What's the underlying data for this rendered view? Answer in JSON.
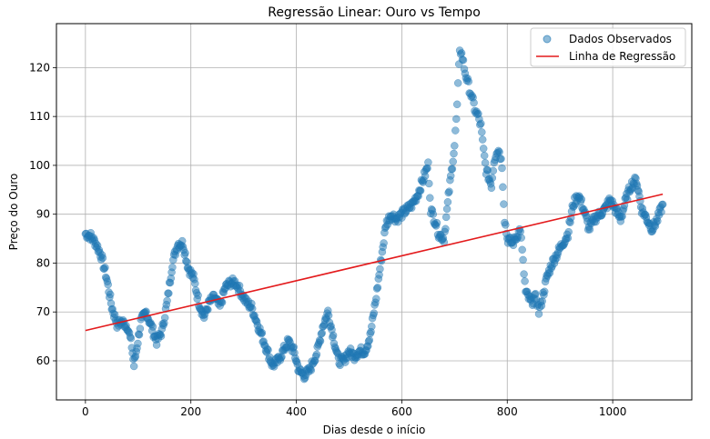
{
  "chart_data": {
    "type": "scatter",
    "title": "Regressão Linear: Ouro vs Tempo",
    "xlabel": "Dias desde o início",
    "ylabel": "Preço do Ouro",
    "xlim": [
      -55,
      1150
    ],
    "ylim": [
      52,
      129
    ],
    "xticks": [
      0,
      200,
      400,
      600,
      800,
      1000
    ],
    "yticks": [
      60,
      70,
      80,
      90,
      100,
      110,
      120
    ],
    "grid": true,
    "legend_position": "top-right",
    "series": [
      {
        "name": "Dados Observados",
        "kind": "scatter",
        "color": "#1f77b4",
        "alpha": 0.5,
        "anchors": [
          [
            0,
            86
          ],
          [
            10,
            85.5
          ],
          [
            20,
            84
          ],
          [
            30,
            81.5
          ],
          [
            40,
            77
          ],
          [
            50,
            71
          ],
          [
            60,
            67.5
          ],
          [
            70,
            68
          ],
          [
            80,
            67
          ],
          [
            88,
            63
          ],
          [
            92,
            59
          ],
          [
            95,
            61
          ],
          [
            105,
            68
          ],
          [
            115,
            70
          ],
          [
            125,
            67
          ],
          [
            135,
            64
          ],
          [
            145,
            66
          ],
          [
            155,
            72
          ],
          [
            165,
            80
          ],
          [
            175,
            84
          ],
          [
            185,
            84
          ],
          [
            195,
            79
          ],
          [
            205,
            77
          ],
          [
            215,
            72
          ],
          [
            225,
            69
          ],
          [
            235,
            72
          ],
          [
            245,
            73
          ],
          [
            255,
            71
          ],
          [
            265,
            75
          ],
          [
            275,
            76
          ],
          [
            285,
            76
          ],
          [
            295,
            74
          ],
          [
            305,
            72
          ],
          [
            315,
            71
          ],
          [
            325,
            68
          ],
          [
            335,
            65
          ],
          [
            345,
            62
          ],
          [
            355,
            59
          ],
          [
            365,
            60
          ],
          [
            375,
            62
          ],
          [
            385,
            64
          ],
          [
            395,
            62
          ],
          [
            405,
            58
          ],
          [
            415,
            57
          ],
          [
            425,
            58
          ],
          [
            440,
            62
          ],
          [
            450,
            67
          ],
          [
            460,
            70
          ],
          [
            470,
            65
          ],
          [
            480,
            60
          ],
          [
            490,
            60
          ],
          [
            500,
            62
          ],
          [
            510,
            61
          ],
          [
            520,
            62
          ],
          [
            530,
            62
          ],
          [
            540,
            65
          ],
          [
            550,
            72
          ],
          [
            560,
            80
          ],
          [
            570,
            88
          ],
          [
            580,
            90
          ],
          [
            590,
            89
          ],
          [
            600,
            90
          ],
          [
            610,
            91
          ],
          [
            620,
            92
          ],
          [
            630,
            94
          ],
          [
            640,
            97
          ],
          [
            650,
            100
          ],
          [
            655,
            91
          ],
          [
            665,
            88
          ],
          [
            670,
            86
          ],
          [
            680,
            85
          ],
          [
            690,
            95
          ],
          [
            700,
            104
          ],
          [
            705,
            112
          ],
          [
            710,
            124
          ],
          [
            715,
            122
          ],
          [
            720,
            119
          ],
          [
            725,
            117
          ],
          [
            730,
            115
          ],
          [
            735,
            113
          ],
          [
            740,
            111
          ],
          [
            745,
            110
          ],
          [
            750,
            108
          ],
          [
            755,
            103
          ],
          [
            760,
            99
          ],
          [
            770,
            96
          ],
          [
            775,
            101
          ],
          [
            780,
            103
          ],
          [
            785,
            103
          ],
          [
            790,
            100
          ],
          [
            795,
            89
          ],
          [
            800,
            85
          ],
          [
            810,
            84
          ],
          [
            820,
            86
          ],
          [
            825,
            87
          ],
          [
            830,
            80
          ],
          [
            835,
            74
          ],
          [
            845,
            72
          ],
          [
            855,
            73
          ],
          [
            860,
            70
          ],
          [
            865,
            72
          ],
          [
            875,
            77
          ],
          [
            885,
            80
          ],
          [
            895,
            82
          ],
          [
            905,
            84
          ],
          [
            915,
            86
          ],
          [
            925,
            92
          ],
          [
            935,
            94
          ],
          [
            945,
            91
          ],
          [
            955,
            87
          ],
          [
            965,
            89
          ],
          [
            975,
            90
          ],
          [
            985,
            91
          ],
          [
            995,
            93
          ],
          [
            1005,
            91
          ],
          [
            1015,
            89
          ],
          [
            1025,
            93
          ],
          [
            1035,
            96
          ],
          [
            1045,
            97
          ],
          [
            1055,
            91
          ],
          [
            1065,
            89
          ],
          [
            1075,
            87
          ],
          [
            1085,
            89
          ],
          [
            1095,
            92
          ]
        ]
      },
      {
        "name": "Linha de Regressão",
        "kind": "line",
        "color": "#e31a1c",
        "x": [
          0,
          1095
        ],
        "y": [
          66.2,
          94.1
        ]
      }
    ]
  }
}
